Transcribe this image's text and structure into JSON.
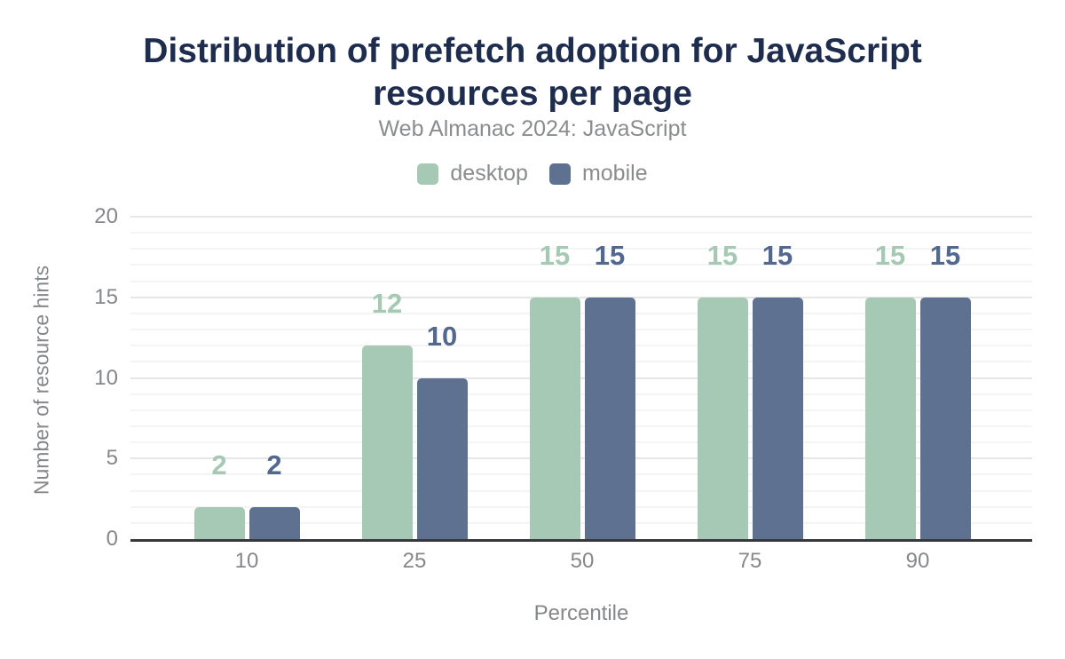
{
  "chart_data": {
    "type": "bar",
    "title": "Distribution of prefetch adoption for JavaScript resources per page",
    "subtitle": "Web Almanac 2024: JavaScript",
    "xlabel": "Percentile",
    "ylabel": "Number of resource hints",
    "categories": [
      "10",
      "25",
      "50",
      "75",
      "90"
    ],
    "series": [
      {
        "name": "desktop",
        "color": "#a5c9b4",
        "label_color": "#a5c9b4",
        "values": [
          2,
          12,
          15,
          15,
          15
        ]
      },
      {
        "name": "mobile",
        "color": "#5e7191",
        "label_color": "#53688e",
        "values": [
          2,
          10,
          15,
          15,
          15
        ]
      }
    ],
    "ylim": [
      0,
      20
    ],
    "yticks": [
      0,
      5,
      10,
      15,
      20
    ],
    "grid": "horizontal, minor every 1 + major every 5",
    "legend_position": "top",
    "colors": {
      "title_text": "#1e2c4e",
      "subtitle_text": "#8a8c8e",
      "tick_text": "#85878a",
      "axis_line": "#38393d",
      "grid_minor": "#f4f4f4",
      "grid_major": "#e6e6e6",
      "background": "#ffffff"
    }
  }
}
